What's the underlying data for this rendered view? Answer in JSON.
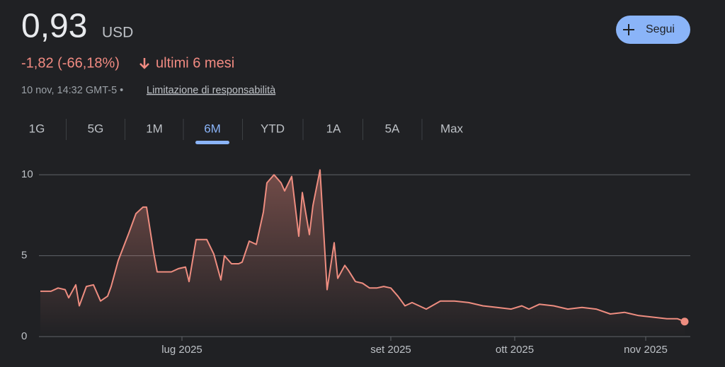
{
  "header": {
    "price": "0,93",
    "currency": "USD",
    "follow_button": "Segui",
    "change": "-1,82 (-66,18%)",
    "period": "ultimi 6 mesi",
    "timestamp": "10 nov, 14:32 GMT-5 •",
    "disclaimer": "Limitazione di responsabilità"
  },
  "tabs": {
    "items": [
      "1G",
      "5G",
      "1M",
      "6M",
      "YTD",
      "1A",
      "5A",
      "Max"
    ],
    "selected": 3
  },
  "chart_data": {
    "type": "area",
    "color": "#ee8d80",
    "x": [
      0,
      3,
      5,
      7,
      8,
      10,
      11,
      13,
      15,
      17,
      19,
      20,
      22,
      25,
      27,
      29,
      30,
      32,
      33,
      37,
      39,
      41,
      42,
      44,
      47,
      49,
      51,
      52,
      54,
      56,
      57,
      59,
      61,
      63,
      64,
      66,
      68,
      69,
      71,
      73,
      74,
      76,
      77,
      79,
      81,
      83,
      84,
      86,
      87,
      89,
      91,
      93,
      95,
      97,
      99,
      101,
      103,
      105,
      107,
      109,
      113,
      117,
      121,
      125,
      129,
      133,
      136,
      138,
      141,
      145,
      149,
      153,
      157,
      161,
      165,
      169,
      173,
      177,
      180,
      182
    ],
    "values": [
      2.8,
      2.8,
      3.0,
      2.9,
      2.4,
      3.2,
      1.9,
      3.1,
      3.2,
      2.2,
      2.5,
      3.1,
      4.7,
      6.4,
      7.6,
      8.0,
      8.0,
      5.2,
      4.0,
      4.0,
      4.2,
      4.3,
      3.4,
      6.0,
      6.0,
      5.1,
      3.5,
      5.0,
      4.5,
      4.5,
      4.6,
      5.9,
      5.7,
      7.7,
      9.5,
      10.0,
      9.5,
      9.0,
      9.9,
      6.2,
      8.9,
      6.3,
      8.1,
      10.3,
      2.9,
      5.8,
      3.6,
      4.4,
      4.1,
      3.4,
      3.3,
      3.0,
      3.0,
      3.1,
      3.0,
      2.5,
      1.9,
      2.1,
      1.9,
      1.7,
      2.2,
      2.2,
      2.1,
      1.9,
      1.8,
      1.7,
      1.9,
      1.7,
      2.0,
      1.9,
      1.7,
      1.8,
      1.7,
      1.4,
      1.5,
      1.3,
      1.2,
      1.1,
      1.1,
      0.93
    ],
    "xlim": [
      0,
      182
    ],
    "xticks": [
      {
        "value": 40,
        "label": "lug 2025"
      },
      {
        "value": 99,
        "label": "set 2025"
      },
      {
        "value": 134,
        "label": "ott 2025"
      },
      {
        "value": 171,
        "label": "nov 2025"
      }
    ],
    "ylim": [
      0,
      10.75
    ],
    "yticks": [
      0,
      5,
      10
    ],
    "grid": true
  }
}
